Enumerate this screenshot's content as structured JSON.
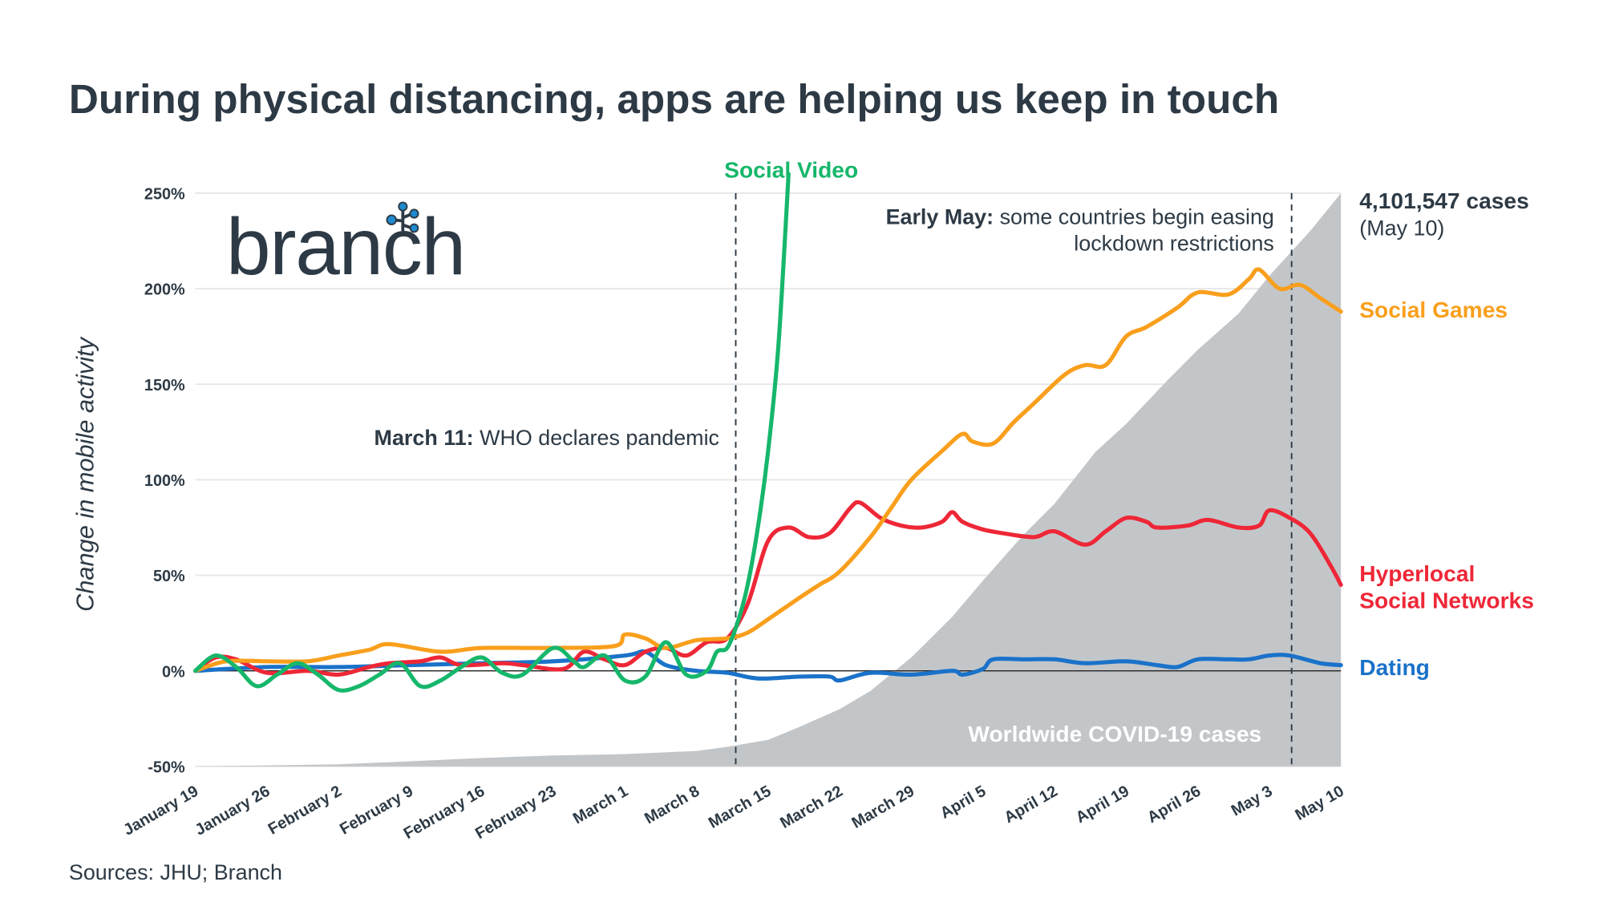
{
  "title": "During physical distancing, apps are helping us keep in touch",
  "source": "Sources: JHU; Branch",
  "logo": "branch",
  "chart_data": {
    "type": "line",
    "title": "During physical distancing, apps are helping us keep in touch",
    "ylabel": "Change in mobile activity",
    "xlabel": "",
    "ylim": [
      -50,
      250
    ],
    "yticks": [
      "-50%",
      "0%",
      "50%",
      "100%",
      "150%",
      "200%",
      "250%"
    ],
    "ytick_values": [
      -50,
      0,
      50,
      100,
      150,
      200,
      250
    ],
    "xticks": [
      "January 19",
      "January 26",
      "February 2",
      "February 9",
      "February 16",
      "February 23",
      "March 1",
      "March 8",
      "March 15",
      "March 22",
      "March 29",
      "April 5",
      "April 12",
      "April 19",
      "April 26",
      "May 3",
      "May 10"
    ],
    "grid": true,
    "colors": {
      "social_video": "#16b76b",
      "social_games": "#f99f1c",
      "hyperlocal": "#ee2737",
      "dating": "#1a72c9",
      "cases": "#c3c6c9",
      "text": "#2d3a45"
    },
    "series": [
      {
        "name": "Social Games",
        "color": "#f99f1c",
        "points": [
          [
            "Jan 19",
            0
          ],
          [
            "Jan 22",
            5
          ],
          [
            "Jan 26",
            5
          ],
          [
            "Jan 30",
            5
          ],
          [
            "Feb 2",
            8
          ],
          [
            "Feb 5",
            11
          ],
          [
            "Feb 7",
            14
          ],
          [
            "Feb 12",
            10
          ],
          [
            "Feb 16",
            12
          ],
          [
            "Feb 23",
            12
          ],
          [
            "Feb 29",
            13
          ],
          [
            "Mar 1",
            19
          ],
          [
            "Mar 3",
            17
          ],
          [
            "Mar 5",
            12
          ],
          [
            "Mar 8",
            16
          ],
          [
            "Mar 11",
            17
          ],
          [
            "Mar 13",
            20
          ],
          [
            "Mar 15",
            27
          ],
          [
            "Mar 18",
            38
          ],
          [
            "Mar 20",
            45
          ],
          [
            "Mar 22",
            52
          ],
          [
            "Mar 25",
            70
          ],
          [
            "Mar 27",
            85
          ],
          [
            "Mar 29",
            100
          ],
          [
            "Apr 1",
            115
          ],
          [
            "Apr 3",
            124
          ],
          [
            "Apr 4",
            120
          ],
          [
            "Apr 6",
            119
          ],
          [
            "Apr 8",
            130
          ],
          [
            "Apr 10",
            140
          ],
          [
            "Apr 13",
            155
          ],
          [
            "Apr 15",
            160
          ],
          [
            "Apr 17",
            160
          ],
          [
            "Apr 19",
            175
          ],
          [
            "Apr 21",
            180
          ],
          [
            "Apr 24",
            190
          ],
          [
            "Apr 26",
            198
          ],
          [
            "Apr 29",
            197
          ],
          [
            "May 1",
            205
          ],
          [
            "May 2",
            210
          ],
          [
            "May 4",
            200
          ],
          [
            "May 6",
            202
          ],
          [
            "May 8",
            195
          ],
          [
            "May 10",
            188
          ]
        ]
      },
      {
        "name": "Hyperlocal Social Networks",
        "color": "#ee2737",
        "points": [
          [
            "Jan 19",
            0
          ],
          [
            "Jan 21",
            7
          ],
          [
            "Jan 23",
            6
          ],
          [
            "Jan 26",
            -1
          ],
          [
            "Jan 30",
            0
          ],
          [
            "Feb 2",
            -2
          ],
          [
            "Feb 5",
            2
          ],
          [
            "Feb 7",
            4
          ],
          [
            "Feb 10",
            5
          ],
          [
            "Feb 12",
            7
          ],
          [
            "Feb 14",
            3
          ],
          [
            "Feb 18",
            4
          ],
          [
            "Feb 20",
            3
          ],
          [
            "Feb 24",
            1
          ],
          [
            "Feb 26",
            10
          ],
          [
            "Feb 28",
            6
          ],
          [
            "Mar 1",
            3
          ],
          [
            "Mar 3",
            10
          ],
          [
            "Mar 5",
            12
          ],
          [
            "Mar 7",
            8
          ],
          [
            "Mar 9",
            15
          ],
          [
            "Mar 11",
            17
          ],
          [
            "Mar 13",
            35
          ],
          [
            "Mar 15",
            68
          ],
          [
            "Mar 17",
            75
          ],
          [
            "Mar 19",
            70
          ],
          [
            "Mar 21",
            72
          ],
          [
            "Mar 23",
            85
          ],
          [
            "Mar 24",
            88
          ],
          [
            "Mar 26",
            80
          ],
          [
            "Mar 28",
            76
          ],
          [
            "Mar 30",
            75
          ],
          [
            "Apr 1",
            78
          ],
          [
            "Apr 2",
            83
          ],
          [
            "Apr 3",
            78
          ],
          [
            "Apr 5",
            74
          ],
          [
            "Apr 7",
            72
          ],
          [
            "Apr 10",
            70
          ],
          [
            "Apr 12",
            73
          ],
          [
            "Apr 15",
            66
          ],
          [
            "Apr 17",
            73
          ],
          [
            "Apr 19",
            80
          ],
          [
            "Apr 21",
            78
          ],
          [
            "Apr 22",
            75
          ],
          [
            "Apr 25",
            76
          ],
          [
            "Apr 27",
            79
          ],
          [
            "Apr 30",
            75
          ],
          [
            "May 2",
            76
          ],
          [
            "May 3",
            84
          ],
          [
            "May 5",
            80
          ],
          [
            "May 7",
            72
          ],
          [
            "May 9",
            55
          ],
          [
            "May 10",
            45
          ]
        ]
      },
      {
        "name": "Social Video",
        "color": "#16b76b",
        "points": [
          [
            "Jan 19",
            0
          ],
          [
            "Jan 21",
            8
          ],
          [
            "Jan 23",
            2
          ],
          [
            "Jan 25",
            -8
          ],
          [
            "Jan 27",
            -2
          ],
          [
            "Jan 29",
            4
          ],
          [
            "Jan 31",
            -2
          ],
          [
            "Feb 2",
            -10
          ],
          [
            "Feb 4",
            -8
          ],
          [
            "Feb 6",
            -2
          ],
          [
            "Feb 8",
            4
          ],
          [
            "Feb 10",
            -8
          ],
          [
            "Feb 12",
            -5
          ],
          [
            "Feb 14",
            2
          ],
          [
            "Feb 16",
            7
          ],
          [
            "Feb 18",
            -1
          ],
          [
            "Feb 20",
            -2
          ],
          [
            "Feb 23",
            12
          ],
          [
            "Feb 25",
            5
          ],
          [
            "Feb 26",
            2
          ],
          [
            "Feb 28",
            8
          ],
          [
            "Mar 1",
            -5
          ],
          [
            "Mar 3",
            -3
          ],
          [
            "Mar 5",
            15
          ],
          [
            "Mar 7",
            -2
          ],
          [
            "Mar 9",
            0
          ],
          [
            "Mar 10",
            10
          ],
          [
            "Mar 11",
            12
          ],
          [
            "Mar 12",
            25
          ],
          [
            "Mar 13",
            45
          ],
          [
            "Mar 14",
            75
          ],
          [
            "Mar 15",
            115
          ],
          [
            "Mar 16",
            170
          ],
          [
            "Mar 17",
            260
          ]
        ]
      },
      {
        "name": "Dating",
        "color": "#1a72c9",
        "points": [
          [
            "Jan 19",
            0
          ],
          [
            "Jan 26",
            2
          ],
          [
            "Feb 2",
            2
          ],
          [
            "Feb 9",
            3
          ],
          [
            "Feb 16",
            4
          ],
          [
            "Feb 23",
            5
          ],
          [
            "Mar 1",
            8
          ],
          [
            "Mar 3",
            10
          ],
          [
            "Mar 5",
            3
          ],
          [
            "Mar 8",
            0
          ],
          [
            "Mar 11",
            -1
          ],
          [
            "Mar 14",
            -4
          ],
          [
            "Mar 18",
            -3
          ],
          [
            "Mar 21",
            -3
          ],
          [
            "Mar 22",
            -5
          ],
          [
            "Mar 25",
            -1
          ],
          [
            "Mar 29",
            -2
          ],
          [
            "Apr 2",
            0
          ],
          [
            "Apr 3",
            -2
          ],
          [
            "Apr 5",
            1
          ],
          [
            "Apr 6",
            6
          ],
          [
            "Apr 9",
            6
          ],
          [
            "Apr 12",
            6
          ],
          [
            "Apr 15",
            4
          ],
          [
            "Apr 19",
            5
          ],
          [
            "Apr 22",
            3
          ],
          [
            "Apr 24",
            2
          ],
          [
            "Apr 26",
            6
          ],
          [
            "Apr 29",
            6
          ],
          [
            "May 1",
            6
          ],
          [
            "May 3",
            8
          ],
          [
            "May 5",
            8
          ],
          [
            "May 8",
            4
          ],
          [
            "May 10",
            3
          ]
        ]
      }
    ],
    "cases": {
      "name": "Worldwide COVID-19 cases",
      "total_label": "4,101,547 cases",
      "total_date": "(May 10)",
      "points": [
        [
          "Jan 19",
          0
        ],
        [
          "Feb 2",
          15000
        ],
        [
          "Feb 9",
          37000
        ],
        [
          "Feb 16",
          60000
        ],
        [
          "Feb 23",
          78000
        ],
        [
          "Mar 1",
          88000
        ],
        [
          "Mar 8",
          110000
        ],
        [
          "Mar 11",
          140000
        ],
        [
          "Mar 15",
          190000
        ],
        [
          "Mar 18",
          280000
        ],
        [
          "Mar 22",
          410000
        ],
        [
          "Mar 25",
          540000
        ],
        [
          "Mar 29",
          780000
        ],
        [
          "Apr 2",
          1070000
        ],
        [
          "Apr 5",
          1330000
        ],
        [
          "Apr 9",
          1660000
        ],
        [
          "Apr 12",
          1880000
        ],
        [
          "Apr 16",
          2250000
        ],
        [
          "Apr 19",
          2450000
        ],
        [
          "Apr 23",
          2760000
        ],
        [
          "Apr 26",
          2980000
        ],
        [
          "Apr 30",
          3240000
        ],
        [
          "May 3",
          3510000
        ],
        [
          "May 7",
          3830000
        ],
        [
          "May 10",
          4101547
        ]
      ]
    },
    "series_labels": {
      "social_video": "Social Video",
      "social_games": "Social Games",
      "hyperlocal_1": "Hyperlocal",
      "hyperlocal_2": "Social Networks",
      "dating": "Dating"
    },
    "annotations": {
      "march11_bold": "March 11:",
      "march11_text": " WHO declares pandemic",
      "may_bold": "Early May:",
      "may_text": " some countries begin easing",
      "may_text2": "lockdown restrictions"
    }
  }
}
